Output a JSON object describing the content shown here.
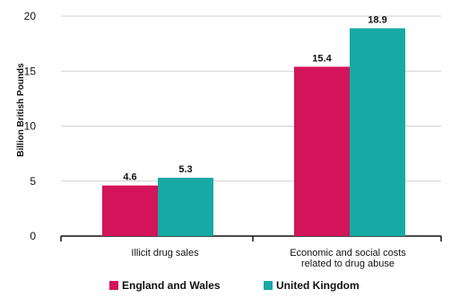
{
  "chart_data": {
    "type": "bar",
    "ylabel": "Billion British Pounds",
    "ylim": [
      0,
      20
    ],
    "yticks": [
      0,
      5,
      10,
      15,
      20
    ],
    "grid": true,
    "legend_position": "bottom",
    "categories": [
      [
        "Illicit drug sales"
      ],
      [
        "Economic and social costs",
        "related to drug abuse"
      ]
    ],
    "series": [
      {
        "name": "England and Wales",
        "color": "#d3145a",
        "values": [
          4.6,
          15.4
        ]
      },
      {
        "name": "United Kingdom",
        "color": "#17a9a3",
        "values": [
          5.3,
          18.9
        ]
      }
    ]
  }
}
